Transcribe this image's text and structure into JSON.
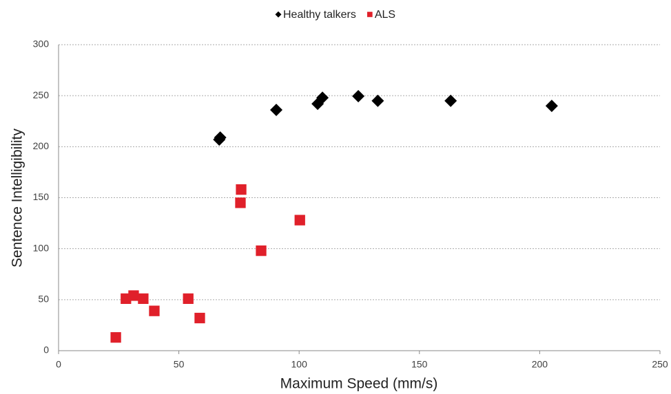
{
  "chart_data": {
    "type": "scatter",
    "x_label": "Maximum Speed (mm/s)",
    "y_label": "Sentence Intelligibility",
    "xlim": [
      0,
      250
    ],
    "xticks": [
      0,
      50,
      100,
      150,
      200,
      250
    ],
    "ylim": [
      0,
      300
    ],
    "yticks": [
      0,
      50,
      100,
      150,
      200,
      250,
      300
    ],
    "grid": true,
    "legend": "top",
    "series": [
      {
        "name": "Healthy talkers",
        "color": "#000000",
        "marker": "diamond",
        "x": [
          66.8,
          67.2,
          90.5,
          107.7,
          109.7,
          124.6,
          132.7,
          163,
          205
        ],
        "values": [
          207,
          209,
          236,
          242,
          248,
          249.5,
          245,
          245,
          240
        ]
      },
      {
        "name": "ALS",
        "color": "#e0202a",
        "marker": "square",
        "x": [
          23.8,
          28,
          31.2,
          35.2,
          39.8,
          53.9,
          58.7,
          75.9,
          75.6,
          84.2,
          100.3
        ],
        "values": [
          13,
          51,
          54,
          51,
          39,
          51,
          32,
          158,
          145,
          98,
          128
        ]
      }
    ]
  }
}
